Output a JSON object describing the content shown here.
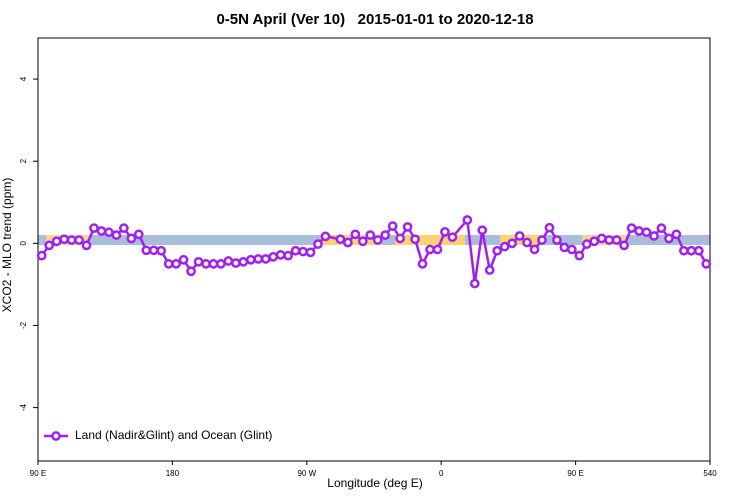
{
  "chart_data": {
    "type": "line",
    "title": "0-5N April (Ver 10)   2015-01-01 to 2020-12-18",
    "xlabel": "Longitude (deg E)",
    "ylabel": "XCO2 - MLO trend (ppm)",
    "x": [
      92.5,
      97.5,
      102.5,
      107.5,
      112.5,
      117.5,
      122.5,
      127.5,
      132.5,
      137.5,
      142.5,
      147.5,
      152.5,
      157.5,
      162.5,
      167.5,
      172.5,
      177.5,
      182.5,
      187.5,
      192.5,
      197.5,
      202.5,
      207.5,
      212.5,
      217.5,
      222.5,
      227.5,
      232.5,
      237.5,
      242.5,
      247.5,
      252.5,
      257.5,
      262.5,
      267.5,
      272.5,
      277.5,
      282.5,
      292.5,
      297.5,
      302.5,
      307.5,
      312.5,
      317.5,
      322.5,
      327.5,
      332.5,
      337.5,
      342.5,
      347.5,
      352.5,
      357.5,
      362.5,
      367.5,
      377.5,
      382.5,
      387.5,
      392.5,
      397.5,
      402.5,
      407.5,
      412.5,
      417.5,
      422.5,
      427.5,
      432.5,
      437.5,
      442.5,
      447.5,
      452.5,
      457.5,
      462.5,
      467.5,
      472.5,
      477.5,
      482.5,
      487.5,
      492.5,
      497.5,
      502.5,
      507.5,
      512.5,
      517.5,
      522.5,
      527.5,
      532.5,
      537.5
    ],
    "series": [
      {
        "name": "Land (Nadir&Glint) and Ocean (Glint)",
        "color": "#a020f0",
        "values": [
          -0.3,
          -0.05,
          0.05,
          0.1,
          0.08,
          0.08,
          -0.05,
          0.37,
          0.3,
          0.27,
          0.2,
          0.37,
          0.12,
          0.22,
          -0.17,
          -0.17,
          -0.18,
          -0.5,
          -0.5,
          -0.4,
          -0.68,
          -0.45,
          -0.5,
          -0.5,
          -0.5,
          -0.43,
          -0.48,
          -0.45,
          -0.4,
          -0.38,
          -0.38,
          -0.33,
          -0.28,
          -0.3,
          -0.18,
          -0.2,
          -0.22,
          -0.02,
          0.17,
          0.1,
          0.02,
          0.22,
          0.05,
          0.2,
          0.08,
          0.2,
          0.42,
          0.12,
          0.4,
          0.1,
          -0.5,
          -0.15,
          -0.15,
          0.28,
          0.15,
          0.57,
          -0.98,
          0.32,
          -0.65,
          -0.18,
          -0.08,
          0,
          0.18,
          0.02,
          -0.15,
          0.08,
          0.38,
          0.08,
          -0.1,
          -0.15,
          -0.3,
          -0.02,
          0.05,
          0.12,
          0.08,
          0.08,
          -0.05,
          0.37,
          0.3,
          0.27,
          0.18,
          0.37,
          0.12,
          0.22,
          -0.18,
          -0.18,
          -0.18,
          -0.5
        ]
      }
    ],
    "xlim": [
      90,
      540
    ],
    "xticks": [
      {
        "value": 90,
        "label": "90 E"
      },
      180,
      {
        "value": 270,
        "label": "90 W"
      },
      {
        "value": 360,
        "label": "0"
      },
      {
        "value": 450,
        "label": "90 E"
      },
      540
    ],
    "ylim": [
      -5.3,
      5
    ],
    "yticks": [
      -4,
      -2,
      0,
      2,
      4
    ],
    "legend": "bottomleft"
  }
}
